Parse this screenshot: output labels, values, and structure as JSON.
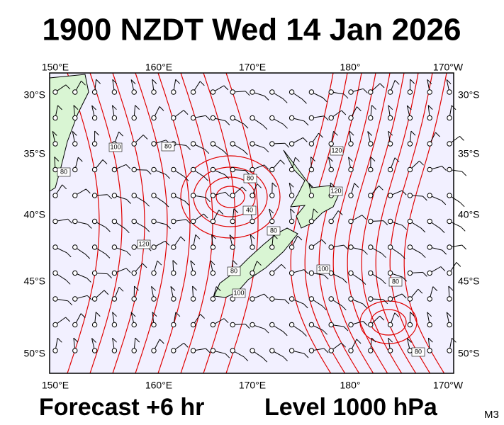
{
  "header": {
    "title": "1900 NZDT Wed 14 Jan 2026"
  },
  "map": {
    "lon_labels": [
      "150°E",
      "160°E",
      "170°E",
      "180°",
      "170°W"
    ],
    "lat_labels": [
      "30°S",
      "35°S",
      "40°S",
      "45°S",
      "50°S"
    ],
    "contour_labels": [
      100,
      80,
      80,
      80,
      40,
      120,
      120,
      80,
      120,
      80,
      100,
      100,
      80,
      80
    ]
  },
  "footer": {
    "forecast": "Forecast +6 hr",
    "level": "Level 1000 hPa",
    "code": "M3"
  }
}
